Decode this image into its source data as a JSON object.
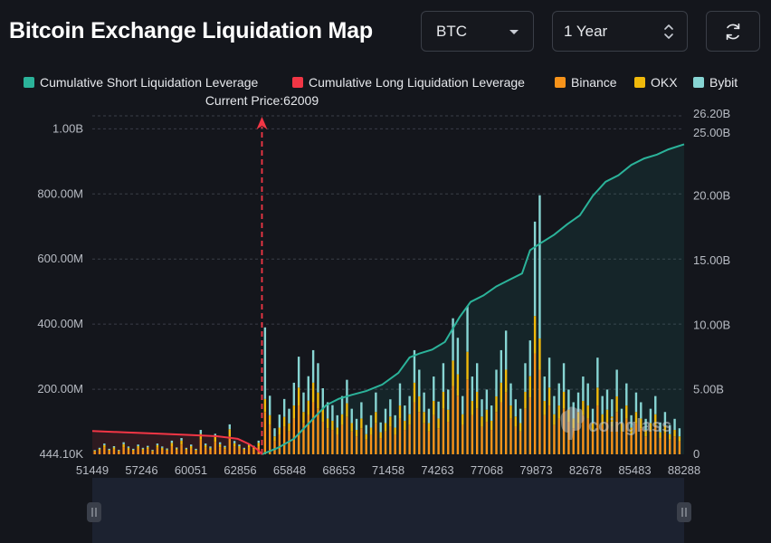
{
  "page": {
    "title": "Bitcoin Exchange Liquidation Map"
  },
  "controls": {
    "coin": "BTC",
    "range": "1 Year",
    "refresh_icon": "refresh-icon"
  },
  "colors": {
    "short": "#2bb39a",
    "long": "#f23645",
    "binance": "#f7931a",
    "okx": "#f0b90b",
    "bybit": "#87d5d3",
    "background": "#14161c"
  },
  "watermark": "coinglass",
  "chart_data": {
    "type": "bar",
    "current_price_label": "Current Price:62009",
    "current_price": 62009,
    "legend": [
      {
        "name": "Cumulative Short Liquidation Leverage",
        "color": "#2bb39a"
      },
      {
        "name": "Cumulative Long Liquidation Leverage",
        "color": "#f23645"
      },
      {
        "name": "Binance",
        "color": "#f7931a"
      },
      {
        "name": "OKX",
        "color": "#f0b90b"
      },
      {
        "name": "Bybit",
        "color": "#87d5d3"
      }
    ],
    "x_ticks": [
      "51449",
      "57246",
      "60051",
      "62856",
      "65848",
      "68653",
      "71458",
      "74263",
      "77068",
      "79873",
      "82678",
      "85483",
      "88288"
    ],
    "x_range": [
      51449,
      88288
    ],
    "y_left": {
      "ticks": [
        "444.10K",
        "200.00M",
        "400.00M",
        "600.00M",
        "800.00M",
        "1.00B"
      ],
      "tick_values": [
        0,
        200000000,
        400000000,
        600000000,
        800000000,
        1000000000
      ],
      "range": [
        0,
        1040000000
      ]
    },
    "y_right": {
      "ticks": [
        "0",
        "5.00B",
        "10.00B",
        "15.00B",
        "20.00B",
        "25.00B",
        "26.20B"
      ],
      "tick_values": [
        0,
        5000000000,
        10000000000,
        15000000000,
        20000000000,
        25000000000,
        26200000000
      ],
      "range": [
        0,
        26200000000
      ]
    },
    "short_cumulative": {
      "x": [
        62009,
        63000,
        64000,
        65000,
        66000,
        66800,
        67600,
        68500,
        69500,
        70500,
        71200,
        71800,
        72600,
        73400,
        74300,
        75000,
        75800,
        76600,
        77400,
        78200,
        78700,
        79300,
        80200,
        81000,
        81800,
        82600,
        83400,
        84200,
        85000,
        85800,
        86600,
        87300,
        88288
      ],
      "y": [
        0,
        500000000,
        1200000000,
        2500000000,
        3800000000,
        4300000000,
        4600000000,
        4900000000,
        5400000000,
        6300000000,
        7500000000,
        7800000000,
        8100000000,
        8700000000,
        10600000000,
        11800000000,
        12300000000,
        13000000000,
        13500000000,
        14000000000,
        15800000000,
        16300000000,
        17000000000,
        17800000000,
        18500000000,
        20000000000,
        21100000000,
        21600000000,
        22400000000,
        22900000000,
        23200000000,
        23600000000,
        24000000000
      ]
    },
    "long_cumulative": {
      "x": [
        51449,
        53500,
        55500,
        57500,
        59200,
        60500,
        61200,
        61700,
        62009
      ],
      "y": [
        1800000000,
        1700000000,
        1600000000,
        1500000000,
        1400000000,
        1200000000,
        800000000,
        400000000,
        0
      ]
    },
    "bars_note": "approximate per-price-level liquidation leverage (values in USD)",
    "bars": {
      "x": [
        51600,
        51900,
        52200,
        52500,
        52800,
        53100,
        53400,
        53700,
        54000,
        54300,
        54600,
        54900,
        55200,
        55500,
        55800,
        56100,
        56400,
        56700,
        57000,
        57300,
        57600,
        57900,
        58200,
        58500,
        58800,
        59100,
        59400,
        59700,
        60000,
        60300,
        60600,
        60900,
        61200,
        61500,
        61800,
        62200,
        62500,
        62800,
        63100,
        63400,
        63700,
        64000,
        64300,
        64600,
        64900,
        65200,
        65500,
        65800,
        66100,
        66400,
        66700,
        67000,
        67300,
        67600,
        67900,
        68200,
        68500,
        68800,
        69100,
        69400,
        69700,
        70000,
        70300,
        70600,
        70900,
        71200,
        71500,
        71800,
        72100,
        72400,
        72700,
        73000,
        73300,
        73600,
        73900,
        74200,
        74500,
        74800,
        75100,
        75400,
        75700,
        76000,
        76300,
        76600,
        76900,
        77200,
        77500,
        77800,
        78100,
        78400,
        78700,
        79000,
        79300,
        79600,
        79900,
        80200,
        80500,
        80800,
        81100,
        81400,
        81700,
        82000,
        82300,
        82600,
        82900,
        83200,
        83500,
        83800,
        84100,
        84400,
        84700,
        85000,
        85300,
        85600,
        85900,
        86200,
        86500,
        86800,
        87100,
        87400,
        87700,
        88000
      ],
      "binance": [
        8,
        12,
        20,
        10,
        15,
        9,
        22,
        14,
        10,
        18,
        12,
        16,
        9,
        20,
        14,
        11,
        25,
        13,
        30,
        12,
        18,
        10,
        45,
        20,
        14,
        38,
        22,
        16,
        55,
        24,
        18,
        12,
        20,
        16,
        25,
        130,
        90,
        40,
        60,
        85,
        70,
        110,
        150,
        95,
        120,
        160,
        140,
        100,
        80,
        75,
        60,
        90,
        115,
        70,
        55,
        80,
        45,
        60,
        95,
        50,
        70,
        85,
        60,
        110,
        75,
        90,
        160,
        130,
        95,
        70,
        120,
        80,
        140,
        100,
        210,
        180,
        90,
        230,
        120,
        140,
        85,
        100,
        75,
        130,
        160,
        190,
        110,
        85,
        70,
        140,
        175,
        310,
        260,
        120,
        150,
        90,
        110,
        140,
        100,
        80,
        95,
        120,
        110,
        70,
        150,
        90,
        100,
        85,
        130,
        70,
        110,
        60,
        95,
        80,
        55,
        70,
        90,
        50,
        65,
        45,
        55,
        40
      ],
      "okx": [
        3,
        5,
        8,
        4,
        6,
        3,
        9,
        6,
        4,
        7,
        5,
        6,
        3,
        8,
        6,
        4,
        10,
        5,
        12,
        5,
        7,
        4,
        18,
        8,
        6,
        15,
        9,
        6,
        22,
        10,
        7,
        5,
        8,
        6,
        10,
        40,
        30,
        15,
        22,
        30,
        25,
        40,
        55,
        35,
        45,
        60,
        50,
        38,
        30,
        28,
        22,
        33,
        42,
        26,
        20,
        30,
        17,
        22,
        35,
        18,
        26,
        31,
        22,
        40,
        28,
        33,
        60,
        48,
        35,
        26,
        44,
        30,
        52,
        37,
        78,
        66,
        33,
        85,
        44,
        52,
        31,
        37,
        28,
        48,
        60,
        70,
        40,
        31,
        26,
        52,
        65,
        115,
        96,
        44,
        55,
        33,
        40,
        52,
        37,
        30,
        35,
        44,
        40,
        26,
        55,
        33,
        37,
        31,
        48,
        26,
        40,
        22,
        35,
        30,
        20,
        26,
        33,
        18,
        24,
        17,
        20,
        15
      ],
      "bybit": [
        2,
        3,
        5,
        3,
        4,
        2,
        6,
        4,
        3,
        5,
        3,
        4,
        2,
        5,
        4,
        3,
        7,
        3,
        8,
        3,
        5,
        3,
        12,
        5,
        4,
        10,
        6,
        4,
        15,
        7,
        5,
        3,
        5,
        4,
        7,
        220,
        60,
        25,
        40,
        55,
        45,
        70,
        95,
        60,
        75,
        100,
        90,
        65,
        50,
        48,
        38,
        56,
        72,
        44,
        34,
        50,
        28,
        38,
        60,
        30,
        44,
        53,
        38,
        68,
        47,
        56,
        100,
        82,
        60,
        44,
        75,
        52,
        88,
        62,
        130,
        112,
        56,
        140,
        75,
        88,
        53,
        62,
        47,
        82,
        100,
        120,
        68,
        53,
        44,
        88,
        110,
        290,
        440,
        75,
        92,
        56,
        68,
        88,
        62,
        50,
        60,
        75,
        68,
        44,
        92,
        56,
        62,
        53,
        82,
        44,
        68,
        38,
        60,
        50,
        34,
        44,
        56,
        30,
        41,
        28,
        34,
        25
      ]
    }
  }
}
